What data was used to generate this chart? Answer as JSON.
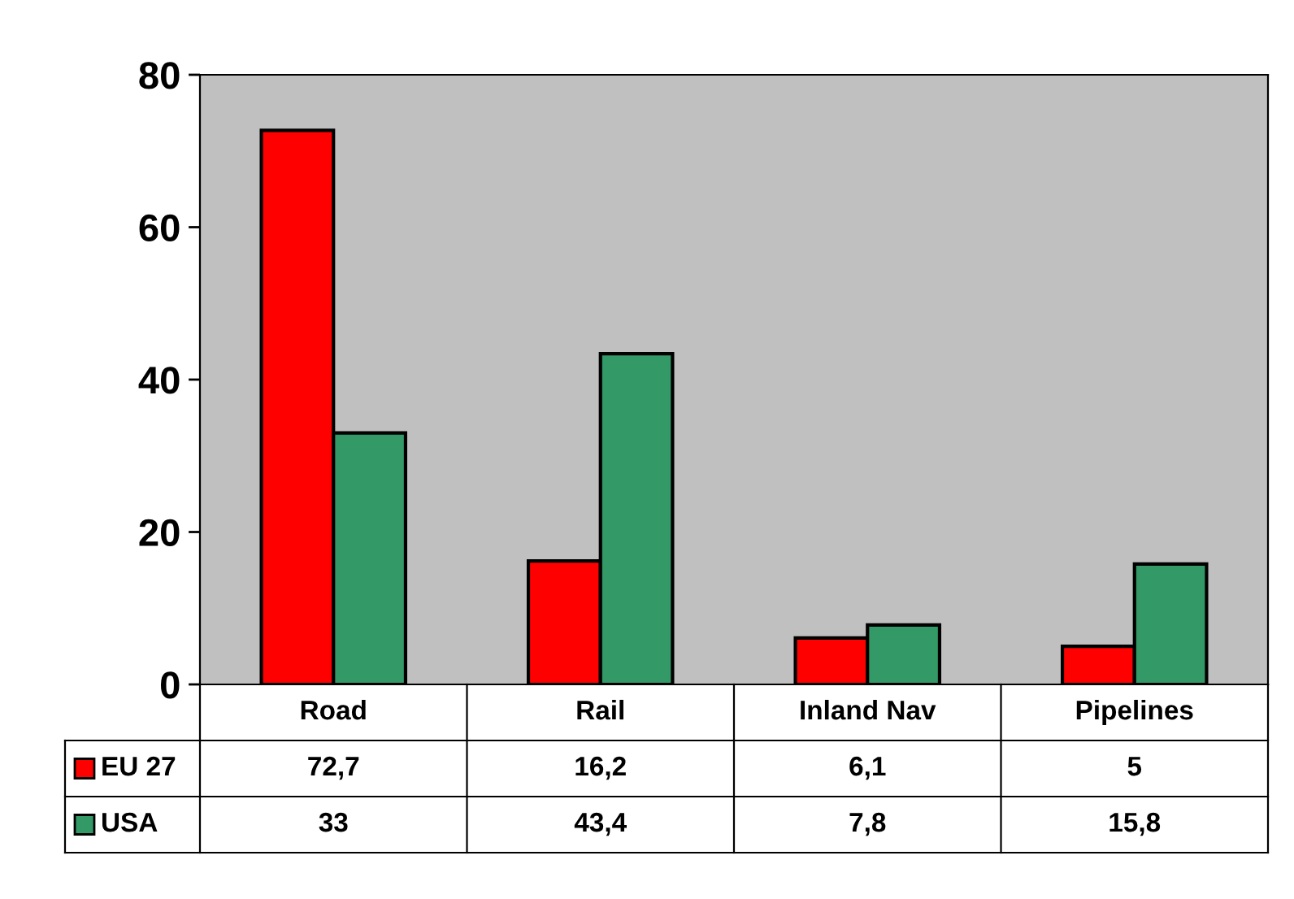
{
  "chart_data": {
    "type": "bar",
    "categories": [
      "Road",
      "Rail",
      "Inland Nav",
      "Pipelines"
    ],
    "series": [
      {
        "name": "EU 27",
        "color": "#ff0000",
        "values": [
          72.7,
          16.2,
          6.1,
          5
        ],
        "value_labels": [
          "72,7",
          "16,2",
          "6,1",
          "5"
        ]
      },
      {
        "name": "USA",
        "color": "#339966",
        "values": [
          33,
          43.4,
          7.8,
          15.8
        ],
        "value_labels": [
          "33",
          "43,4",
          "7,8",
          "15,8"
        ]
      }
    ],
    "ylim": [
      0,
      80
    ],
    "yticks": [
      0,
      20,
      40,
      60,
      80
    ],
    "grid": false,
    "legend": "bottom left"
  }
}
